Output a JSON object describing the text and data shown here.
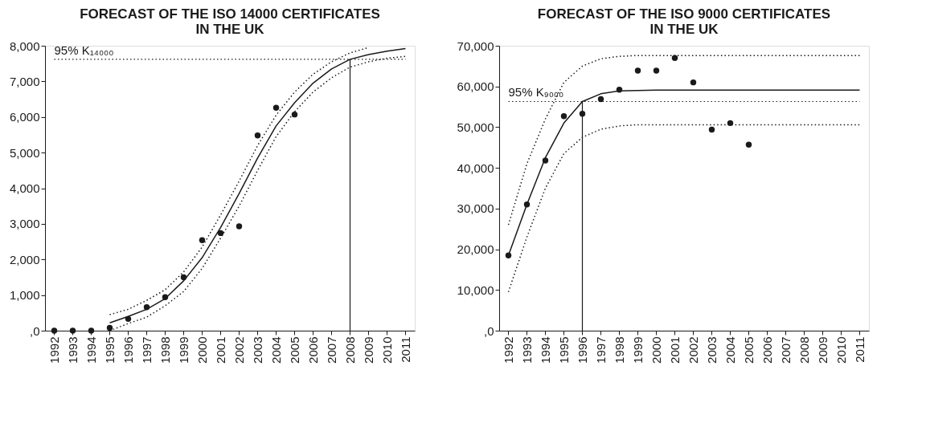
{
  "chart_data": [
    {
      "type": "scatter",
      "title": "FORECAST OF THE ISO 14000 CERTIFICATES\nIN THE UK",
      "categories": [
        "1992",
        "1993",
        "1994",
        "1995",
        "1996",
        "1997",
        "1998",
        "1999",
        "2000",
        "2001",
        "2002",
        "2003",
        "2004",
        "2005",
        "2006",
        "2007",
        "2008",
        "2009",
        "2010",
        "2011"
      ],
      "ylim": [
        0,
        8000
      ],
      "yticks": [
        {
          "value": 0,
          "label": ",0"
        },
        {
          "value": 1000,
          "label": "1,000"
        },
        {
          "value": 2000,
          "label": "2,000"
        },
        {
          "value": 3000,
          "label": "3,000"
        },
        {
          "value": 4000,
          "label": "4,000"
        },
        {
          "value": 5000,
          "label": "5,000"
        },
        {
          "value": 6000,
          "label": "6,000"
        },
        {
          "value": 7000,
          "label": "7,000"
        },
        {
          "value": 8000,
          "label": "8,000"
        }
      ],
      "series": [
        {
          "type": "line",
          "color": "#1a1a1a",
          "line_style": "dotted",
          "marker": "none",
          "values": [
            null,
            null,
            null,
            450,
            600,
            850,
            1150,
            1650,
            2350,
            3250,
            4200,
            5200,
            6050,
            6700,
            7200,
            7550,
            7800,
            7950,
            null,
            null
          ]
        },
        {
          "type": "line",
          "color": "#1a1a1a",
          "line_style": "dotted",
          "marker": "none",
          "values": [
            null,
            null,
            null,
            0,
            200,
            380,
            700,
            1100,
            1750,
            2600,
            3500,
            4500,
            5450,
            6150,
            6700,
            7100,
            7400,
            7550,
            7650,
            7700
          ]
        },
        {
          "type": "line",
          "color": "#1a1a1a",
          "line_style": "solid",
          "marker": "none",
          "values": [
            null,
            null,
            null,
            220,
            400,
            600,
            900,
            1400,
            2050,
            2900,
            3850,
            4850,
            5750,
            6400,
            6950,
            7350,
            7620,
            7750,
            7850,
            7920
          ]
        },
        {
          "color": "#1a1a1a",
          "marker": "circle",
          "values": [
            0,
            0,
            0,
            80,
            330,
            660,
            940,
            1500,
            2540,
            2740,
            2930,
            5480,
            6260,
            6070,
            null,
            null,
            null,
            null,
            null,
            null
          ]
        }
      ],
      "ref_lines": [
        {
          "axis": "y",
          "value": 7620,
          "label": "95% K₁₄₀₀₀",
          "line_style": "dotted",
          "color": "#1a1a1a"
        },
        {
          "axis": "x",
          "value": "2008",
          "label": null,
          "line_style": "solid",
          "color": "#1a1a1a"
        }
      ]
    },
    {
      "type": "scatter",
      "title": "FORECAST OF THE ISO 9000 CERTIFICATES\nIN THE UK",
      "categories": [
        "1992",
        "1993",
        "1994",
        "1995",
        "1996",
        "1997",
        "1998",
        "1999",
        "2000",
        "2001",
        "2002",
        "2003",
        "2004",
        "2005",
        "2006",
        "2007",
        "2008",
        "2009",
        "2010",
        "2011"
      ],
      "ylim": [
        0,
        70000
      ],
      "yticks": [
        {
          "value": 0,
          "label": ",0"
        },
        {
          "value": 10000,
          "label": "10,000"
        },
        {
          "value": 20000,
          "label": "20,000"
        },
        {
          "value": 30000,
          "label": "30,000"
        },
        {
          "value": 40000,
          "label": "40,000"
        },
        {
          "value": 50000,
          "label": "50,000"
        },
        {
          "value": 60000,
          "label": "60,000"
        },
        {
          "value": 70000,
          "label": "70,000"
        }
      ],
      "series": [
        {
          "type": "line",
          "color": "#1a1a1a",
          "line_style": "dotted",
          "marker": "none",
          "values": [
            26000,
            41000,
            52000,
            61000,
            65000,
            66800,
            67400,
            67600,
            67600,
            67600,
            67600,
            67600,
            67600,
            67600,
            67600,
            67600,
            67600,
            67600,
            67600,
            67600
          ]
        },
        {
          "type": "line",
          "color": "#1a1a1a",
          "line_style": "dotted",
          "marker": "none",
          "values": [
            9500,
            23000,
            35000,
            43500,
            47500,
            49500,
            50300,
            50600,
            50600,
            50600,
            50600,
            50600,
            50600,
            50600,
            50600,
            50600,
            50600,
            50600,
            50600,
            50600
          ]
        },
        {
          "type": "line",
          "color": "#1a1a1a",
          "line_style": "solid",
          "marker": "none",
          "values": [
            18500,
            31000,
            42500,
            51000,
            56300,
            58200,
            58900,
            59000,
            59100,
            59100,
            59100,
            59100,
            59100,
            59100,
            59100,
            59100,
            59100,
            59100,
            59100,
            59100
          ]
        },
        {
          "color": "#1a1a1a",
          "marker": "circle",
          "values": [
            18500,
            31000,
            41800,
            52700,
            53300,
            56900,
            59200,
            63900,
            63900,
            67000,
            61000,
            49400,
            51000,
            45700,
            null,
            null,
            null,
            null,
            null,
            null
          ]
        }
      ],
      "ref_lines": [
        {
          "axis": "y",
          "value": 56300,
          "label": "95% K₉₀₀₀",
          "line_style": "dotted",
          "color": "#1a1a1a"
        },
        {
          "axis": "x",
          "value": "1996",
          "label": null,
          "line_style": "solid",
          "color": "#1a1a1a"
        }
      ]
    }
  ]
}
